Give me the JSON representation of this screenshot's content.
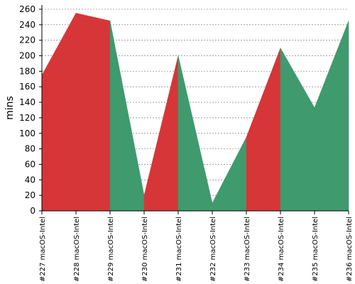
{
  "chart_data": {
    "type": "area",
    "title": "",
    "xlabel": "",
    "ylabel": "mins",
    "ylim": [
      0,
      260
    ],
    "yticks": [
      0,
      20,
      40,
      60,
      80,
      100,
      120,
      140,
      160,
      180,
      200,
      220,
      240,
      260
    ],
    "grid": true,
    "categories": [
      "#227 macOS-Intel",
      "#228 macOS-Intel",
      "#229 macOS-Intel",
      "#230 macOS-Intel",
      "#231 macOS-Intel",
      "#232 macOS-Intel",
      "#233 macOS-Intel",
      "#234 macOS-Intel",
      "#235 macOS-Intel",
      "#236 macOS-Intel"
    ],
    "values": [
      175,
      255,
      245,
      20,
      200,
      10,
      95,
      210,
      133,
      245
    ],
    "status_colors": {
      "failed": "#d63638",
      "passed": "#3f9a6e"
    },
    "colors_by_interval": [
      "failed",
      "failed",
      "passed",
      "failed",
      "passed",
      "passed",
      "failed",
      "passed",
      "passed"
    ]
  }
}
